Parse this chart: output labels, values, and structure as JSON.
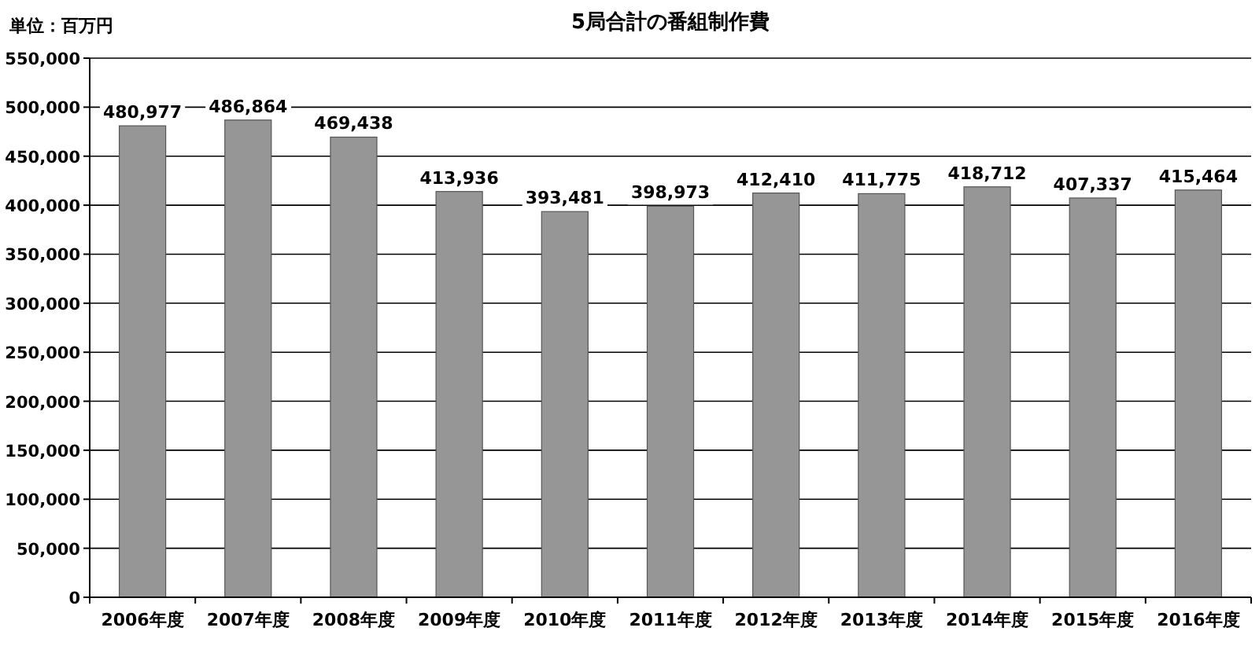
{
  "chart_data": {
    "type": "bar",
    "title": "5局合計の番組制作費",
    "annotations": [
      "単位：百万円"
    ],
    "categories": [
      "2006年度",
      "2007年度",
      "2008年度",
      "2009年度",
      "2010年度",
      "2011年度",
      "2012年度",
      "2013年度",
      "2014年度",
      "2015年度",
      "2016年度"
    ],
    "values": [
      480977,
      486864,
      469438,
      413936,
      393481,
      398973,
      412410,
      411775,
      418712,
      407337,
      415464
    ],
    "value_labels": [
      "480,977",
      "486,864",
      "469,438",
      "413,936",
      "393,481",
      "398,973",
      "412,410",
      "411,775",
      "418,712",
      "407,337",
      "415,464"
    ],
    "color": "#969696",
    "ylim": [
      0,
      550000
    ],
    "yticks": [
      {
        "value": 0,
        "label": "0"
      },
      {
        "value": 50000,
        "label": "50,000"
      },
      {
        "value": 100000,
        "label": "100,000"
      },
      {
        "value": 150000,
        "label": "150,000"
      },
      {
        "value": 200000,
        "label": "200,000"
      },
      {
        "value": 250000,
        "label": "250,000"
      },
      {
        "value": 300000,
        "label": "300,000"
      },
      {
        "value": 350000,
        "label": "350,000"
      },
      {
        "value": 400000,
        "label": "400,000"
      },
      {
        "value": 450000,
        "label": "450,000"
      },
      {
        "value": 500000,
        "label": "500,000"
      },
      {
        "value": 550000,
        "label": "550,000"
      }
    ],
    "grid": "y"
  }
}
